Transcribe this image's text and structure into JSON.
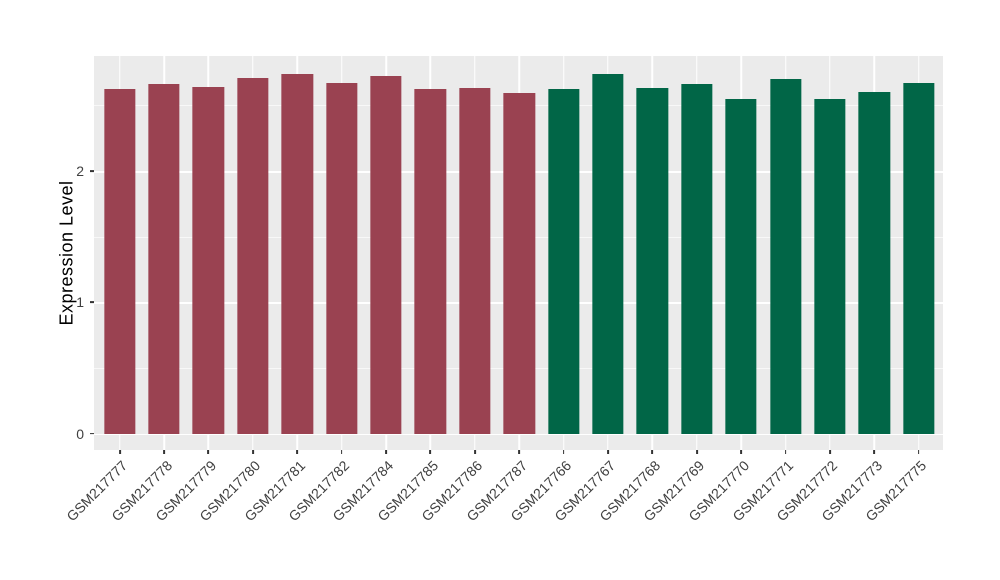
{
  "chart_data": {
    "type": "bar",
    "title": "",
    "xlabel": "",
    "ylabel": "Expression Level",
    "categories": [
      "GSM217777",
      "GSM217778",
      "GSM217779",
      "GSM217780",
      "GSM217781",
      "GSM217782",
      "GSM217784",
      "GSM217785",
      "GSM217786",
      "GSM217787",
      "GSM217766",
      "GSM217767",
      "GSM217768",
      "GSM217769",
      "GSM217770",
      "GSM217771",
      "GSM217772",
      "GSM217773",
      "GSM217775"
    ],
    "values": [
      2.62,
      2.66,
      2.64,
      2.71,
      2.74,
      2.67,
      2.72,
      2.62,
      2.63,
      2.59,
      2.62,
      2.74,
      2.63,
      2.66,
      2.55,
      2.7,
      2.55,
      2.6,
      2.67
    ],
    "bar_groups": [
      "red",
      "red",
      "red",
      "red",
      "red",
      "red",
      "red",
      "red",
      "red",
      "red",
      "green",
      "green",
      "green",
      "green",
      "green",
      "green",
      "green",
      "green",
      "green"
    ],
    "group_colors": {
      "red": "#9A4251",
      "green": "#016647"
    },
    "y_ticks": [
      0,
      1,
      2
    ],
    "y_minor_gridlines": [
      0.5,
      1.5,
      2.5
    ],
    "ylim": [
      0,
      2.88
    ],
    "grid": true,
    "legend": "none",
    "panel_bg": "#EBEBEB",
    "grid_color": "#FFFFFF",
    "axis_text_color": "#404040",
    "axis_title_color": "#000000",
    "tick_mark_color": "#333333"
  }
}
